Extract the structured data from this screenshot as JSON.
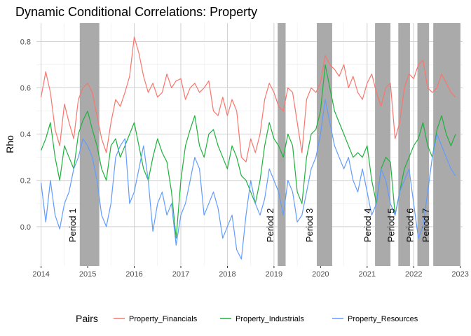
{
  "chart_data": {
    "type": "line",
    "title": "Dynamic Conditional Correlations: Property",
    "xlabel": "",
    "ylabel": "Rho",
    "xlim": [
      2013.9,
      2023.05
    ],
    "ylim": [
      -0.17,
      0.88
    ],
    "x_ticks": [
      2014,
      2015,
      2016,
      2017,
      2018,
      2019,
      2020,
      2021,
      2022,
      2023
    ],
    "x_tick_labels": [
      "2014",
      "2015",
      "2016",
      "2017",
      "2018",
      "2019",
      "2020",
      "2021",
      "2022",
      "2023"
    ],
    "y_ticks": [
      0.0,
      0.2,
      0.4,
      0.6,
      0.8
    ],
    "y_tick_labels": [
      "0.0",
      "0.2",
      "0.4",
      "0.6",
      "0.8"
    ],
    "grid": true,
    "legend": {
      "title": "Pairs",
      "position": "bottom"
    },
    "shaded_periods": [
      {
        "label": "Period 1",
        "start": 2014.83,
        "end": 2015.25
      },
      {
        "label": "Period 2",
        "start": 2019.08,
        "end": 2019.25
      },
      {
        "label": "Period 3",
        "start": 2019.92,
        "end": 2020.25
      },
      {
        "label": "Period 4",
        "start": 2021.17,
        "end": 2021.5
      },
      {
        "label": "Period 5",
        "start": 2021.67,
        "end": 2021.92
      },
      {
        "label": "Period 6",
        "start": 2022.08,
        "end": 2022.33
      },
      {
        "label": "Period 7",
        "start": 2022.42,
        "end": 2023.0
      }
    ],
    "series": [
      {
        "name": "Property_Financials",
        "color": "#F8766D",
        "x": [
          2014.0,
          2014.1,
          2014.2,
          2014.3,
          2014.4,
          2014.5,
          2014.6,
          2014.7,
          2014.8,
          2014.9,
          2015.0,
          2015.1,
          2015.2,
          2015.3,
          2015.4,
          2015.5,
          2015.6,
          2015.7,
          2015.8,
          2015.9,
          2016.0,
          2016.1,
          2016.2,
          2016.3,
          2016.4,
          2016.5,
          2016.6,
          2016.7,
          2016.8,
          2016.9,
          2017.0,
          2017.1,
          2017.2,
          2017.3,
          2017.4,
          2017.5,
          2017.6,
          2017.7,
          2017.8,
          2017.9,
          2018.0,
          2018.1,
          2018.2,
          2018.3,
          2018.4,
          2018.5,
          2018.6,
          2018.7,
          2018.8,
          2018.9,
          2019.0,
          2019.1,
          2019.2,
          2019.3,
          2019.4,
          2019.5,
          2019.6,
          2019.7,
          2019.8,
          2019.9,
          2020.0,
          2020.1,
          2020.2,
          2020.3,
          2020.4,
          2020.5,
          2020.6,
          2020.7,
          2020.8,
          2020.9,
          2021.0,
          2021.1,
          2021.2,
          2021.3,
          2021.4,
          2021.5,
          2021.6,
          2021.7,
          2021.8,
          2021.9,
          2022.0,
          2022.1,
          2022.2,
          2022.3,
          2022.4,
          2022.5,
          2022.6,
          2022.7,
          2022.8,
          2022.9
        ],
        "values": [
          0.56,
          0.67,
          0.58,
          0.42,
          0.35,
          0.53,
          0.45,
          0.38,
          0.55,
          0.6,
          0.62,
          0.58,
          0.48,
          0.38,
          0.32,
          0.45,
          0.55,
          0.52,
          0.58,
          0.65,
          0.82,
          0.75,
          0.65,
          0.58,
          0.62,
          0.56,
          0.58,
          0.66,
          0.6,
          0.63,
          0.64,
          0.55,
          0.6,
          0.62,
          0.58,
          0.6,
          0.63,
          0.5,
          0.48,
          0.56,
          0.48,
          0.55,
          0.5,
          0.3,
          0.28,
          0.38,
          0.32,
          0.4,
          0.55,
          0.62,
          0.58,
          0.52,
          0.5,
          0.6,
          0.58,
          0.45,
          0.32,
          0.55,
          0.6,
          0.58,
          0.62,
          0.74,
          0.7,
          0.68,
          0.65,
          0.7,
          0.6,
          0.65,
          0.58,
          0.55,
          0.62,
          0.66,
          0.58,
          0.52,
          0.6,
          0.62,
          0.38,
          0.45,
          0.6,
          0.66,
          0.64,
          0.7,
          0.72,
          0.6,
          0.58,
          0.6,
          0.66,
          0.62,
          0.58,
          0.56
        ]
      },
      {
        "name": "Property_Industrials",
        "color": "#1DB23C",
        "x": [
          2014.0,
          2014.1,
          2014.2,
          2014.3,
          2014.4,
          2014.5,
          2014.6,
          2014.7,
          2014.8,
          2014.9,
          2015.0,
          2015.1,
          2015.2,
          2015.3,
          2015.4,
          2015.5,
          2015.6,
          2015.7,
          2015.8,
          2015.9,
          2016.0,
          2016.1,
          2016.2,
          2016.3,
          2016.4,
          2016.5,
          2016.6,
          2016.7,
          2016.8,
          2016.9,
          2017.0,
          2017.1,
          2017.2,
          2017.3,
          2017.4,
          2017.5,
          2017.6,
          2017.7,
          2017.8,
          2017.9,
          2018.0,
          2018.1,
          2018.2,
          2018.3,
          2018.4,
          2018.5,
          2018.6,
          2018.7,
          2018.8,
          2018.9,
          2019.0,
          2019.1,
          2019.2,
          2019.3,
          2019.4,
          2019.5,
          2019.6,
          2019.7,
          2019.8,
          2019.9,
          2020.0,
          2020.1,
          2020.2,
          2020.3,
          2020.4,
          2020.5,
          2020.6,
          2020.7,
          2020.8,
          2020.9,
          2021.0,
          2021.1,
          2021.2,
          2021.3,
          2021.4,
          2021.5,
          2021.6,
          2021.7,
          2021.8,
          2021.9,
          2022.0,
          2022.1,
          2022.2,
          2022.3,
          2022.4,
          2022.5,
          2022.6,
          2022.7,
          2022.8,
          2022.9
        ],
        "values": [
          0.33,
          0.38,
          0.45,
          0.3,
          0.2,
          0.35,
          0.3,
          0.25,
          0.4,
          0.46,
          0.5,
          0.42,
          0.35,
          0.25,
          0.2,
          0.35,
          0.38,
          0.3,
          0.35,
          0.4,
          0.45,
          0.35,
          0.25,
          0.2,
          0.3,
          0.38,
          0.32,
          0.28,
          0.15,
          -0.05,
          0.2,
          0.35,
          0.42,
          0.48,
          0.35,
          0.3,
          0.4,
          0.42,
          0.35,
          0.3,
          0.25,
          0.35,
          0.3,
          0.22,
          0.2,
          0.15,
          0.1,
          0.2,
          0.35,
          0.45,
          0.38,
          0.35,
          0.3,
          0.4,
          0.35,
          0.15,
          0.1,
          0.3,
          0.4,
          0.42,
          0.5,
          0.7,
          0.6,
          0.5,
          0.45,
          0.4,
          0.35,
          0.3,
          0.32,
          0.3,
          0.35,
          0.2,
          0.1,
          0.25,
          0.3,
          0.28,
          0.05,
          0.15,
          0.25,
          0.3,
          0.35,
          0.38,
          0.45,
          0.35,
          0.3,
          0.42,
          0.48,
          0.4,
          0.35,
          0.4
        ]
      },
      {
        "name": "Property_Resources",
        "color": "#619CFF",
        "x": [
          2014.0,
          2014.1,
          2014.2,
          2014.3,
          2014.4,
          2014.5,
          2014.6,
          2014.7,
          2014.8,
          2014.9,
          2015.0,
          2015.1,
          2015.2,
          2015.3,
          2015.4,
          2015.5,
          2015.6,
          2015.7,
          2015.8,
          2015.9,
          2016.0,
          2016.1,
          2016.2,
          2016.3,
          2016.4,
          2016.5,
          2016.6,
          2016.7,
          2016.8,
          2016.9,
          2017.0,
          2017.1,
          2017.2,
          2017.3,
          2017.4,
          2017.5,
          2017.6,
          2017.7,
          2017.8,
          2017.9,
          2018.0,
          2018.1,
          2018.2,
          2018.3,
          2018.4,
          2018.5,
          2018.6,
          2018.7,
          2018.8,
          2018.9,
          2019.0,
          2019.1,
          2019.2,
          2019.3,
          2019.4,
          2019.5,
          2019.6,
          2019.7,
          2019.8,
          2019.9,
          2020.0,
          2020.1,
          2020.2,
          2020.3,
          2020.4,
          2020.5,
          2020.6,
          2020.7,
          2020.8,
          2020.9,
          2021.0,
          2021.1,
          2021.2,
          2021.3,
          2021.4,
          2021.5,
          2021.6,
          2021.7,
          2021.8,
          2021.9,
          2022.0,
          2022.1,
          2022.2,
          2022.3,
          2022.4,
          2022.5,
          2022.6,
          2022.7,
          2022.8,
          2022.9
        ],
        "values": [
          0.19,
          0.02,
          0.2,
          0.05,
          -0.01,
          0.1,
          0.15,
          0.25,
          0.3,
          0.38,
          0.35,
          0.3,
          0.2,
          0.05,
          0.0,
          0.1,
          0.3,
          0.35,
          0.38,
          0.1,
          0.15,
          0.25,
          0.35,
          0.2,
          -0.02,
          0.1,
          0.15,
          0.05,
          0.1,
          -0.08,
          0.05,
          0.1,
          0.2,
          0.3,
          0.25,
          0.05,
          0.1,
          0.15,
          0.08,
          -0.05,
          0.0,
          0.05,
          -0.1,
          -0.14,
          0.05,
          0.2,
          0.1,
          0.05,
          0.12,
          0.25,
          0.2,
          0.15,
          0.05,
          0.2,
          0.15,
          0.02,
          0.05,
          0.15,
          0.25,
          0.3,
          0.4,
          0.55,
          0.45,
          0.35,
          0.3,
          0.25,
          0.3,
          0.2,
          0.15,
          0.25,
          0.15,
          0.05,
          0.1,
          0.25,
          0.2,
          0.1,
          0.05,
          0.15,
          0.2,
          0.25,
          0.1,
          -0.05,
          0.0,
          0.15,
          0.3,
          0.4,
          0.35,
          0.3,
          0.25,
          0.22
        ]
      }
    ]
  }
}
